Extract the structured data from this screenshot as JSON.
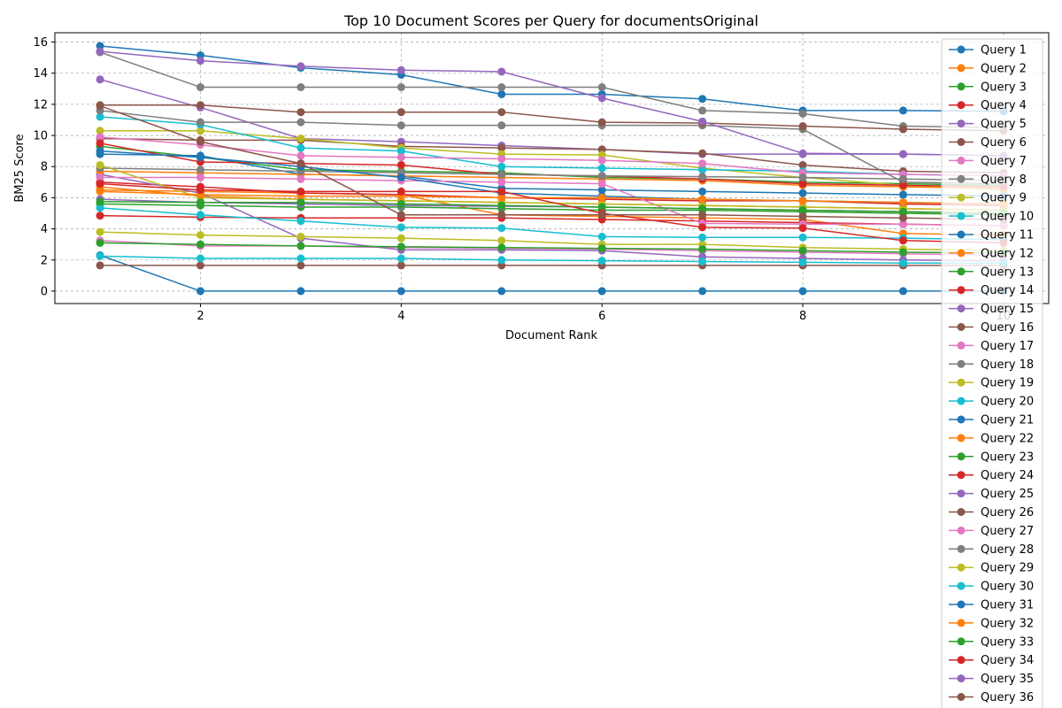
{
  "chart_data": {
    "type": "line",
    "title": "Top 10 Document Scores per Query for documentsOriginal",
    "xlabel": "Document Rank",
    "ylabel": "BM25 Score",
    "xlim": [
      0.55,
      10.45
    ],
    "ylim": [
      -0.8,
      16.6
    ],
    "xticks": [
      2,
      4,
      6,
      8,
      10
    ],
    "yticks": [
      0,
      2,
      4,
      6,
      8,
      10,
      12,
      14,
      16
    ],
    "grid": true,
    "legend": "right",
    "x": [
      1,
      2,
      3,
      4,
      5,
      6,
      7,
      8,
      9,
      10
    ],
    "colors": [
      "#1f77b4",
      "#ff7f0e",
      "#2ca02c",
      "#d62728",
      "#9467bd",
      "#8c564b",
      "#e377c2",
      "#7f7f7f",
      "#bcbd22",
      "#17becf"
    ],
    "series": [
      {
        "name": "Query 1",
        "values": [
          15.75,
          15.15,
          14.35,
          13.9,
          12.65,
          12.65,
          12.35,
          11.6,
          11.6,
          11.55
        ]
      },
      {
        "name": "Query 2",
        "values": [
          6.5,
          6.4,
          6.3,
          6.2,
          4.9,
          4.8,
          4.7,
          4.6,
          3.7,
          3.6
        ]
      },
      {
        "name": "Query 3",
        "values": [
          9.3,
          8.6,
          7.8,
          7.7,
          7.6,
          7.3,
          7.2,
          7.0,
          6.9,
          6.8
        ]
      },
      {
        "name": "Query 4",
        "values": [
          7.0,
          6.7,
          6.3,
          6.2,
          6.0,
          5.9,
          5.8,
          5.8,
          5.6,
          5.5
        ]
      },
      {
        "name": "Query 5",
        "values": [
          13.6,
          11.8,
          9.8,
          9.6,
          9.35,
          9.1,
          8.8,
          8.8,
          8.8,
          8.7
        ]
      },
      {
        "name": "Query 6",
        "values": [
          9.8,
          9.7,
          9.7,
          9.3,
          9.2,
          9.1,
          8.85,
          8.1,
          7.7,
          7.6
        ]
      },
      {
        "name": "Query 7",
        "values": [
          3.25,
          2.9,
          2.9,
          2.8,
          2.75,
          2.7,
          2.6,
          2.5,
          2.4,
          2.3
        ]
      },
      {
        "name": "Query 8",
        "values": [
          15.35,
          13.1,
          13.1,
          13.1,
          13.1,
          13.1,
          11.6,
          11.4,
          10.6,
          10.5
        ]
      },
      {
        "name": "Query 9",
        "values": [
          10.3,
          10.3,
          9.8,
          9.2,
          8.8,
          8.75,
          7.9,
          7.3,
          6.8,
          6.5
        ]
      },
      {
        "name": "Query 10",
        "values": [
          11.2,
          10.7,
          9.2,
          9.0,
          8.0,
          7.9,
          7.8,
          7.7,
          7.5,
          7.4
        ]
      },
      {
        "name": "Query 11",
        "values": [
          2.3,
          0.0,
          0.0,
          0.0,
          0.0,
          0.0,
          0.0,
          0.0,
          0.0,
          0.0
        ]
      },
      {
        "name": "Query 12",
        "values": [
          6.7,
          6.1,
          5.9,
          5.8,
          5.7,
          5.6,
          5.5,
          5.4,
          5.3,
          5.2
        ]
      },
      {
        "name": "Query 13",
        "values": [
          5.6,
          5.5,
          5.4,
          5.4,
          5.3,
          5.2,
          5.2,
          5.1,
          5.0,
          4.9
        ]
      },
      {
        "name": "Query 14",
        "values": [
          4.85,
          4.75,
          4.7,
          4.7,
          4.7,
          4.6,
          4.5,
          4.4,
          4.3,
          4.2
        ]
      },
      {
        "name": "Query 15",
        "values": [
          7.5,
          6.3,
          3.4,
          2.65,
          2.65,
          2.6,
          2.2,
          2.1,
          2.0,
          1.95
        ]
      },
      {
        "name": "Query 16",
        "values": [
          1.65,
          1.65,
          1.65,
          1.65,
          1.65,
          1.65,
          1.65,
          1.65,
          1.65,
          1.65
        ]
      },
      {
        "name": "Query 17",
        "values": [
          9.9,
          9.4,
          8.7,
          8.6,
          8.5,
          8.4,
          8.2,
          7.6,
          7.5,
          7.4
        ]
      },
      {
        "name": "Query 18",
        "values": [
          11.6,
          10.85,
          10.85,
          10.65,
          10.65,
          10.65,
          10.65,
          10.4,
          7.0,
          6.9
        ]
      },
      {
        "name": "Query 19",
        "values": [
          3.8,
          3.6,
          3.5,
          3.4,
          3.25,
          3.0,
          3.0,
          2.8,
          2.7,
          2.6
        ]
      },
      {
        "name": "Query 20",
        "values": [
          5.35,
          4.9,
          4.5,
          4.1,
          4.05,
          3.5,
          3.45,
          3.45,
          3.4,
          3.3
        ]
      },
      {
        "name": "Query 21",
        "values": [
          8.8,
          8.7,
          7.5,
          7.4,
          6.6,
          6.5,
          6.4,
          6.3,
          6.2,
          6.1
        ]
      },
      {
        "name": "Query 22",
        "values": [
          7.7,
          7.6,
          7.5,
          7.4,
          7.3,
          7.2,
          7.1,
          6.8,
          6.7,
          6.6
        ]
      },
      {
        "name": "Query 23",
        "values": [
          3.1,
          3.0,
          2.9,
          2.85,
          2.8,
          2.75,
          2.7,
          2.6,
          2.5,
          2.45
        ]
      },
      {
        "name": "Query 24",
        "values": [
          9.5,
          8.3,
          8.2,
          8.1,
          7.5,
          7.4,
          7.2,
          6.9,
          6.8,
          6.7
        ]
      },
      {
        "name": "Query 25",
        "values": [
          5.9,
          5.7,
          5.6,
          5.5,
          5.45,
          5.4,
          5.3,
          5.2,
          5.1,
          5.0
        ]
      },
      {
        "name": "Query 26",
        "values": [
          11.95,
          11.95,
          11.5,
          11.5,
          11.5,
          10.85,
          10.8,
          10.6,
          10.4,
          10.3
        ]
      },
      {
        "name": "Query 27",
        "values": [
          7.3,
          7.3,
          7.2,
          7.1,
          7.0,
          6.9,
          4.35,
          4.3,
          4.3,
          4.2
        ]
      },
      {
        "name": "Query 28",
        "values": [
          7.9,
          7.8,
          7.7,
          7.6,
          7.5,
          7.4,
          7.35,
          7.3,
          7.2,
          7.1
        ]
      },
      {
        "name": "Query 29",
        "values": [
          8.1,
          6.0,
          5.9,
          5.8,
          5.7,
          5.6,
          5.5,
          5.4,
          5.3,
          5.2
        ]
      },
      {
        "name": "Query 30",
        "values": [
          2.25,
          2.1,
          2.1,
          2.1,
          2.0,
          1.95,
          1.9,
          1.85,
          1.8,
          1.8
        ]
      },
      {
        "name": "Query 31",
        "values": [
          9.0,
          8.6,
          8.0,
          7.3,
          6.3,
          6.1,
          5.9,
          5.8,
          5.7,
          5.6
        ]
      },
      {
        "name": "Query 32",
        "values": [
          6.4,
          6.2,
          6.1,
          6.1,
          6.0,
          6.0,
          5.9,
          5.8,
          5.7,
          5.6
        ]
      },
      {
        "name": "Query 33",
        "values": [
          5.75,
          5.7,
          5.7,
          5.6,
          5.5,
          5.4,
          5.3,
          5.2,
          5.1,
          5.0
        ]
      },
      {
        "name": "Query 34",
        "values": [
          6.9,
          6.5,
          6.4,
          6.4,
          6.4,
          5.0,
          4.1,
          4.05,
          3.25,
          3.1
        ]
      },
      {
        "name": "Query 35",
        "values": [
          15.4,
          14.8,
          14.45,
          14.2,
          14.1,
          12.4,
          10.9,
          8.85,
          8.8,
          8.7
        ]
      },
      {
        "name": "Query 36",
        "values": [
          11.9,
          9.6,
          8.2,
          4.9,
          4.9,
          4.9,
          4.9,
          4.8,
          4.7,
          4.6
        ]
      }
    ]
  }
}
